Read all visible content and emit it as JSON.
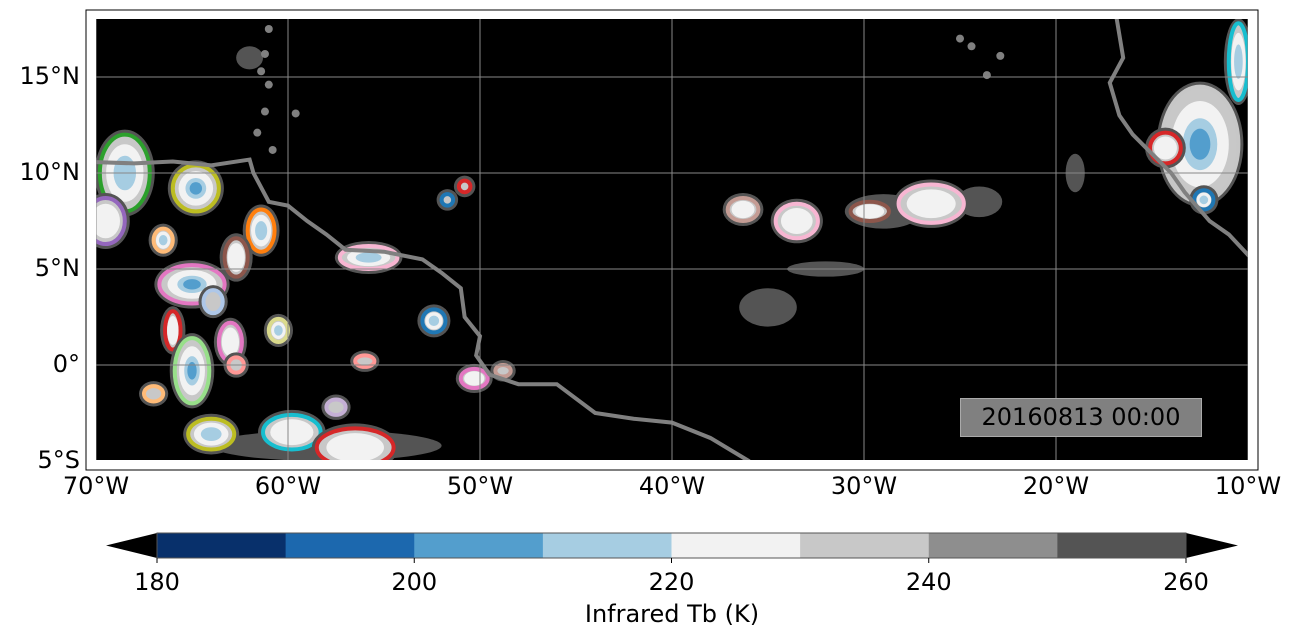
{
  "map": {
    "extent": {
      "lon": [
        -70,
        -10
      ],
      "lat": [
        -5,
        18
      ]
    },
    "background_color": "#000000",
    "coastline_color": "#808080",
    "gridlines": true,
    "lat_ticks": [
      {
        "value": 15,
        "label": "15°N"
      },
      {
        "value": 10,
        "label": "10°N"
      },
      {
        "value": 5,
        "label": "5°N"
      },
      {
        "value": 0,
        "label": "0°"
      },
      {
        "value": -5,
        "label": "5°S"
      }
    ],
    "lon_ticks": [
      {
        "value": -70,
        "label": "70°W"
      },
      {
        "value": -60,
        "label": "60°W"
      },
      {
        "value": -50,
        "label": "50°W"
      },
      {
        "value": -40,
        "label": "40°W"
      },
      {
        "value": -30,
        "label": "30°W"
      },
      {
        "value": -20,
        "label": "20°W"
      },
      {
        "value": -10,
        "label": "10°W"
      }
    ],
    "timestamp": "20160813 00:00",
    "cloud_systems": [
      {
        "lon": -68.5,
        "lat": 10,
        "rlon": 1.3,
        "rlat": 2,
        "outline": "#2ca02c",
        "min_tb": 210
      },
      {
        "lon": -69.5,
        "lat": 7.5,
        "rlon": 1,
        "rlat": 1.2,
        "outline": "#9467bd",
        "min_tb": 220
      },
      {
        "lon": -64.8,
        "lat": 9.2,
        "rlon": 1.2,
        "rlat": 1.2,
        "outline": "#bcbd22",
        "min_tb": 200
      },
      {
        "lon": -61.4,
        "lat": 7,
        "rlon": 0.7,
        "rlat": 1.1,
        "outline": "#ff7f0e",
        "min_tb": 210
      },
      {
        "lon": -62.7,
        "lat": 5.6,
        "rlon": 0.6,
        "rlat": 1,
        "outline": "#8c564b",
        "min_tb": 220
      },
      {
        "lon": -66.5,
        "lat": 6.5,
        "rlon": 0.5,
        "rlat": 0.6,
        "outline": "#ffbb78",
        "min_tb": 210
      },
      {
        "lon": -65,
        "lat": 4.2,
        "rlon": 1.7,
        "rlat": 1,
        "outline": "#e377c2",
        "min_tb": 200
      },
      {
        "lon": -63.9,
        "lat": 3.3,
        "rlon": 0.5,
        "rlat": 0.6,
        "outline": "#aec7e8",
        "min_tb": 230
      },
      {
        "lon": -66,
        "lat": 1.8,
        "rlon": 0.4,
        "rlat": 1,
        "outline": "#d62728",
        "min_tb": 220
      },
      {
        "lon": -65,
        "lat": -0.3,
        "rlon": 0.9,
        "rlat": 1.7,
        "outline": "#98df8a",
        "min_tb": 200
      },
      {
        "lon": -67,
        "lat": -1.5,
        "rlon": 0.5,
        "rlat": 0.4,
        "outline": "#ffbb78",
        "min_tb": 230
      },
      {
        "lon": -63,
        "lat": 1.2,
        "rlon": 0.6,
        "rlat": 1,
        "outline": "#e377c2",
        "min_tb": 220
      },
      {
        "lon": -60.5,
        "lat": 1.8,
        "rlon": 0.5,
        "rlat": 0.6,
        "outline": "#dbdb8d",
        "min_tb": 210
      },
      {
        "lon": -62.7,
        "lat": 0,
        "rlon": 0.4,
        "rlat": 0.4,
        "outline": "#ff9896",
        "min_tb": 230
      },
      {
        "lon": -64,
        "lat": -3.6,
        "rlon": 1.2,
        "rlat": 0.8,
        "outline": "#bcbd22",
        "min_tb": 210
      },
      {
        "lon": -59.8,
        "lat": -3.5,
        "rlon": 1.5,
        "rlat": 0.9,
        "outline": "#17becf",
        "min_tb": 220
      },
      {
        "lon": -56.5,
        "lat": -4.3,
        "rlon": 2,
        "rlat": 1,
        "outline": "#d62728",
        "min_tb": 220
      },
      {
        "lon": -57.5,
        "lat": -2.2,
        "rlon": 0.5,
        "rlat": 0.4,
        "outline": "#c5b0d5",
        "min_tb": 230
      },
      {
        "lon": -56,
        "lat": 0.2,
        "rlon": 0.5,
        "rlat": 0.3,
        "outline": "#ff9896",
        "min_tb": 230
      },
      {
        "lon": -55.8,
        "lat": 5.6,
        "rlon": 1.5,
        "rlat": 0.6,
        "outline": "#f7b6d2",
        "min_tb": 210
      },
      {
        "lon": -52.4,
        "lat": 2.3,
        "rlon": 0.6,
        "rlat": 0.6,
        "outline": "#1f77b4",
        "min_tb": 210
      },
      {
        "lon": -51.7,
        "lat": 8.6,
        "rlon": 0.3,
        "rlat": 0.3,
        "outline": "#1f77b4",
        "min_tb": 230
      },
      {
        "lon": -50.8,
        "lat": 9.3,
        "rlon": 0.3,
        "rlat": 0.3,
        "outline": "#d62728",
        "min_tb": 230
      },
      {
        "lon": -50.3,
        "lat": -0.7,
        "rlon": 0.7,
        "rlat": 0.5,
        "outline": "#e377c2",
        "min_tb": 220
      },
      {
        "lon": -48.8,
        "lat": -0.3,
        "rlon": 0.4,
        "rlat": 0.3,
        "outline": "#c49c94",
        "min_tb": 230
      },
      {
        "lon": -36.3,
        "lat": 8.1,
        "rlon": 0.8,
        "rlat": 0.6,
        "outline": "#c49c94",
        "min_tb": 220
      },
      {
        "lon": -33.5,
        "lat": 7.5,
        "rlon": 1.1,
        "rlat": 0.9,
        "outline": "#f7b6d2",
        "min_tb": 220
      },
      {
        "lon": -29.7,
        "lat": 8,
        "rlon": 1,
        "rlat": 0.5,
        "outline": "#8c564b",
        "min_tb": 220
      },
      {
        "lon": -26.5,
        "lat": 8.4,
        "rlon": 1.7,
        "rlat": 1,
        "outline": "#f7b6d2",
        "min_tb": 220
      },
      {
        "lon": -12.5,
        "lat": 11.5,
        "rlon": 2,
        "rlat": 3,
        "outline": "#c7c7c7",
        "min_tb": 200
      },
      {
        "lon": -14.3,
        "lat": 11.3,
        "rlon": 0.8,
        "rlat": 0.8,
        "outline": "#d62728",
        "min_tb": 220
      },
      {
        "lon": -12.3,
        "lat": 8.6,
        "rlon": 0.5,
        "rlat": 0.5,
        "outline": "#1f77b4",
        "min_tb": 210
      },
      {
        "lon": -10.5,
        "lat": 15.8,
        "rlon": 0.5,
        "rlat": 2,
        "outline": "#17becf",
        "min_tb": 210
      }
    ],
    "warm_cloud_patches": [
      {
        "lon": -35,
        "lat": 3,
        "rlon": 1.5,
        "rlat": 1
      },
      {
        "lon": -32,
        "lat": 5,
        "rlon": 2,
        "rlat": 0.4
      },
      {
        "lon": -24,
        "lat": 8.5,
        "rlon": 1.2,
        "rlat": 0.8
      },
      {
        "lon": -19,
        "lat": 10,
        "rlon": 0.5,
        "rlat": 1
      },
      {
        "lon": -58,
        "lat": -4.2,
        "rlon": 6,
        "rlat": 0.8
      },
      {
        "lon": -62,
        "lat": 16,
        "rlon": 0.7,
        "rlat": 0.6
      },
      {
        "lon": -29,
        "lat": 8,
        "rlon": 2,
        "rlat": 0.9
      }
    ]
  },
  "colorbar": {
    "label": "Infrared Tb (K)",
    "bins": [
      180,
      190,
      200,
      210,
      220,
      230,
      240,
      250,
      260
    ],
    "colors": [
      "#08306b",
      "#1c68ae",
      "#539ecd",
      "#a6cde2",
      "#f2f2f2",
      "#c8c8c8",
      "#8e8e8e",
      "#545454"
    ],
    "extend_color": "#000000",
    "ticks": [
      "180",
      "200",
      "220",
      "240",
      "260"
    ]
  }
}
